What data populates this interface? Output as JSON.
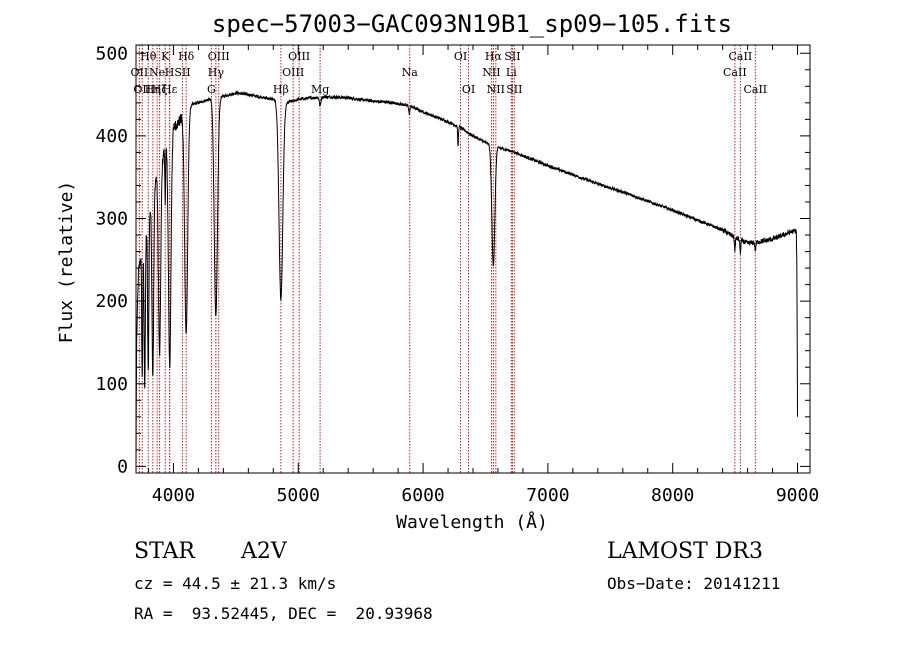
{
  "chart_data": {
    "type": "line",
    "title": "spec−57003−GAC093N19B1_sp09−105.fits",
    "xlabel": "Wavelength (Å)",
    "ylabel": "Flux (relative)",
    "xlim": [
      3700,
      9100
    ],
    "ylim": [
      -8,
      510
    ],
    "xticks": [
      4000,
      5000,
      6000,
      7000,
      8000,
      9000
    ],
    "xtick_labels": [
      "4000",
      "5000",
      "6000",
      "7000",
      "8000",
      "9000"
    ],
    "yticks": [
      0,
      100,
      200,
      300,
      400,
      500
    ],
    "ytick_labels": [
      "0",
      "100",
      "200",
      "300",
      "400",
      "500"
    ],
    "continuum": [
      [
        3700,
        0
      ],
      [
        3705,
        150
      ],
      [
        3720,
        235
      ],
      [
        3750,
        265
      ],
      [
        3800,
        300
      ],
      [
        3850,
        345
      ],
      [
        3900,
        370
      ],
      [
        3950,
        390
      ],
      [
        4000,
        410
      ],
      [
        4050,
        418
      ],
      [
        4100,
        430
      ],
      [
        4150,
        438
      ],
      [
        4200,
        440
      ],
      [
        4300,
        445
      ],
      [
        4400,
        448
      ],
      [
        4500,
        452
      ],
      [
        4600,
        450
      ],
      [
        4700,
        447
      ],
      [
        4800,
        444
      ],
      [
        4900,
        440
      ],
      [
        5000,
        444
      ],
      [
        5100,
        446
      ],
      [
        5200,
        447
      ],
      [
        5300,
        447
      ],
      [
        5400,
        446
      ],
      [
        5500,
        444
      ],
      [
        5600,
        442
      ],
      [
        5700,
        441
      ],
      [
        5800,
        439
      ],
      [
        5900,
        436
      ],
      [
        6000,
        429
      ],
      [
        6100,
        423
      ],
      [
        6200,
        417
      ],
      [
        6300,
        410
      ],
      [
        6400,
        400
      ],
      [
        6500,
        392
      ],
      [
        6600,
        386
      ],
      [
        6700,
        382
      ],
      [
        6800,
        376
      ],
      [
        6900,
        370
      ],
      [
        7000,
        364
      ],
      [
        7200,
        353
      ],
      [
        7400,
        342
      ],
      [
        7600,
        332
      ],
      [
        7800,
        321
      ],
      [
        8000,
        310
      ],
      [
        8200,
        298
      ],
      [
        8400,
        286
      ],
      [
        8500,
        277
      ],
      [
        8600,
        270
      ],
      [
        8700,
        272
      ],
      [
        8800,
        275
      ],
      [
        8900,
        281
      ],
      [
        8950,
        284
      ],
      [
        8990,
        285
      ],
      [
        8995,
        240
      ],
      [
        9000,
        60
      ]
    ],
    "absorption": [
      {
        "center": 3750,
        "depth": 160,
        "width": 4
      },
      {
        "center": 3770,
        "depth": 180,
        "width": 5
      },
      {
        "center": 3798,
        "depth": 185,
        "width": 5
      },
      {
        "center": 3835,
        "depth": 220,
        "width": 7
      },
      {
        "center": 3889,
        "depth": 230,
        "width": 9
      },
      {
        "center": 3934,
        "depth": 60,
        "width": 3
      },
      {
        "center": 3970,
        "depth": 280,
        "width": 10
      },
      {
        "center": 4102,
        "depth": 270,
        "width": 12
      },
      {
        "center": 4340,
        "depth": 265,
        "width": 13
      },
      {
        "center": 4861,
        "depth": 240,
        "width": 15
      },
      {
        "center": 5175,
        "depth": 10,
        "width": 6
      },
      {
        "center": 5890,
        "depth": 10,
        "width": 4
      },
      {
        "center": 6280,
        "depth": 25,
        "width": 3
      },
      {
        "center": 6563,
        "depth": 145,
        "width": 12
      },
      {
        "center": 8498,
        "depth": 15,
        "width": 4
      },
      {
        "center": 8542,
        "depth": 15,
        "width": 4
      },
      {
        "center": 8662,
        "depth": 10,
        "width": 4
      }
    ],
    "lines": [
      {
        "wave": 3727,
        "label": "OII",
        "row": 1
      },
      {
        "wave": 3750,
        "label": "OII",
        "row": 2
      },
      {
        "wave": 3798,
        "label": "Hθ",
        "row": 0
      },
      {
        "wave": 3835,
        "label": "Hη",
        "row": 2
      },
      {
        "wave": 3869,
        "label": "Ne",
        "row": 1
      },
      {
        "wave": 3889,
        "label": "Hζ",
        "row": 2
      },
      {
        "wave": 3934,
        "label": "K",
        "row": 0
      },
      {
        "wave": 3969,
        "label": "H",
        "row": 1
      },
      {
        "wave": 3970,
        "label": "Hε",
        "row": 2
      },
      {
        "wave": 4072,
        "label": "SII",
        "row": 1
      },
      {
        "wave": 4102,
        "label": "Hδ",
        "row": 0
      },
      {
        "wave": 4304,
        "label": "G",
        "row": 2
      },
      {
        "wave": 4340,
        "label": "Hγ",
        "row": 1
      },
      {
        "wave": 4363,
        "label": "OIII",
        "row": 0
      },
      {
        "wave": 4861,
        "label": "Hβ",
        "row": 2
      },
      {
        "wave": 4959,
        "label": "OIII",
        "row": 1
      },
      {
        "wave": 5007,
        "label": "OIII",
        "row": 0
      },
      {
        "wave": 5175,
        "label": "Mg",
        "row": 2
      },
      {
        "wave": 5893,
        "label": "Na",
        "row": 1
      },
      {
        "wave": 6300,
        "label": "OI",
        "row": 0
      },
      {
        "wave": 6364,
        "label": "OI",
        "row": 2
      },
      {
        "wave": 6548,
        "label": "NII",
        "row": 1
      },
      {
        "wave": 6563,
        "label": "Hα",
        "row": 0
      },
      {
        "wave": 6583,
        "label": "NII",
        "row": 2
      },
      {
        "wave": 6707,
        "label": "Li",
        "row": 1
      },
      {
        "wave": 6716,
        "label": "SII",
        "row": 0
      },
      {
        "wave": 6731,
        "label": "SII",
        "row": 2
      },
      {
        "wave": 8498,
        "label": "CaII",
        "row": 1
      },
      {
        "wave": 8542,
        "label": "CaII",
        "row": 0
      },
      {
        "wave": 8662,
        "label": "CaII",
        "row": 2
      }
    ],
    "line_color": "#000000",
    "marker_color": "#b22222"
  },
  "info": {
    "class_label": "STAR",
    "subclass": "A2V",
    "survey": "LAMOST DR3",
    "redshift": "cz = 44.5 ± 21.3 km/s",
    "obs_date": "Obs−Date: 20141211",
    "coords": "RA =  93.52445, DEC =  20.93968"
  }
}
